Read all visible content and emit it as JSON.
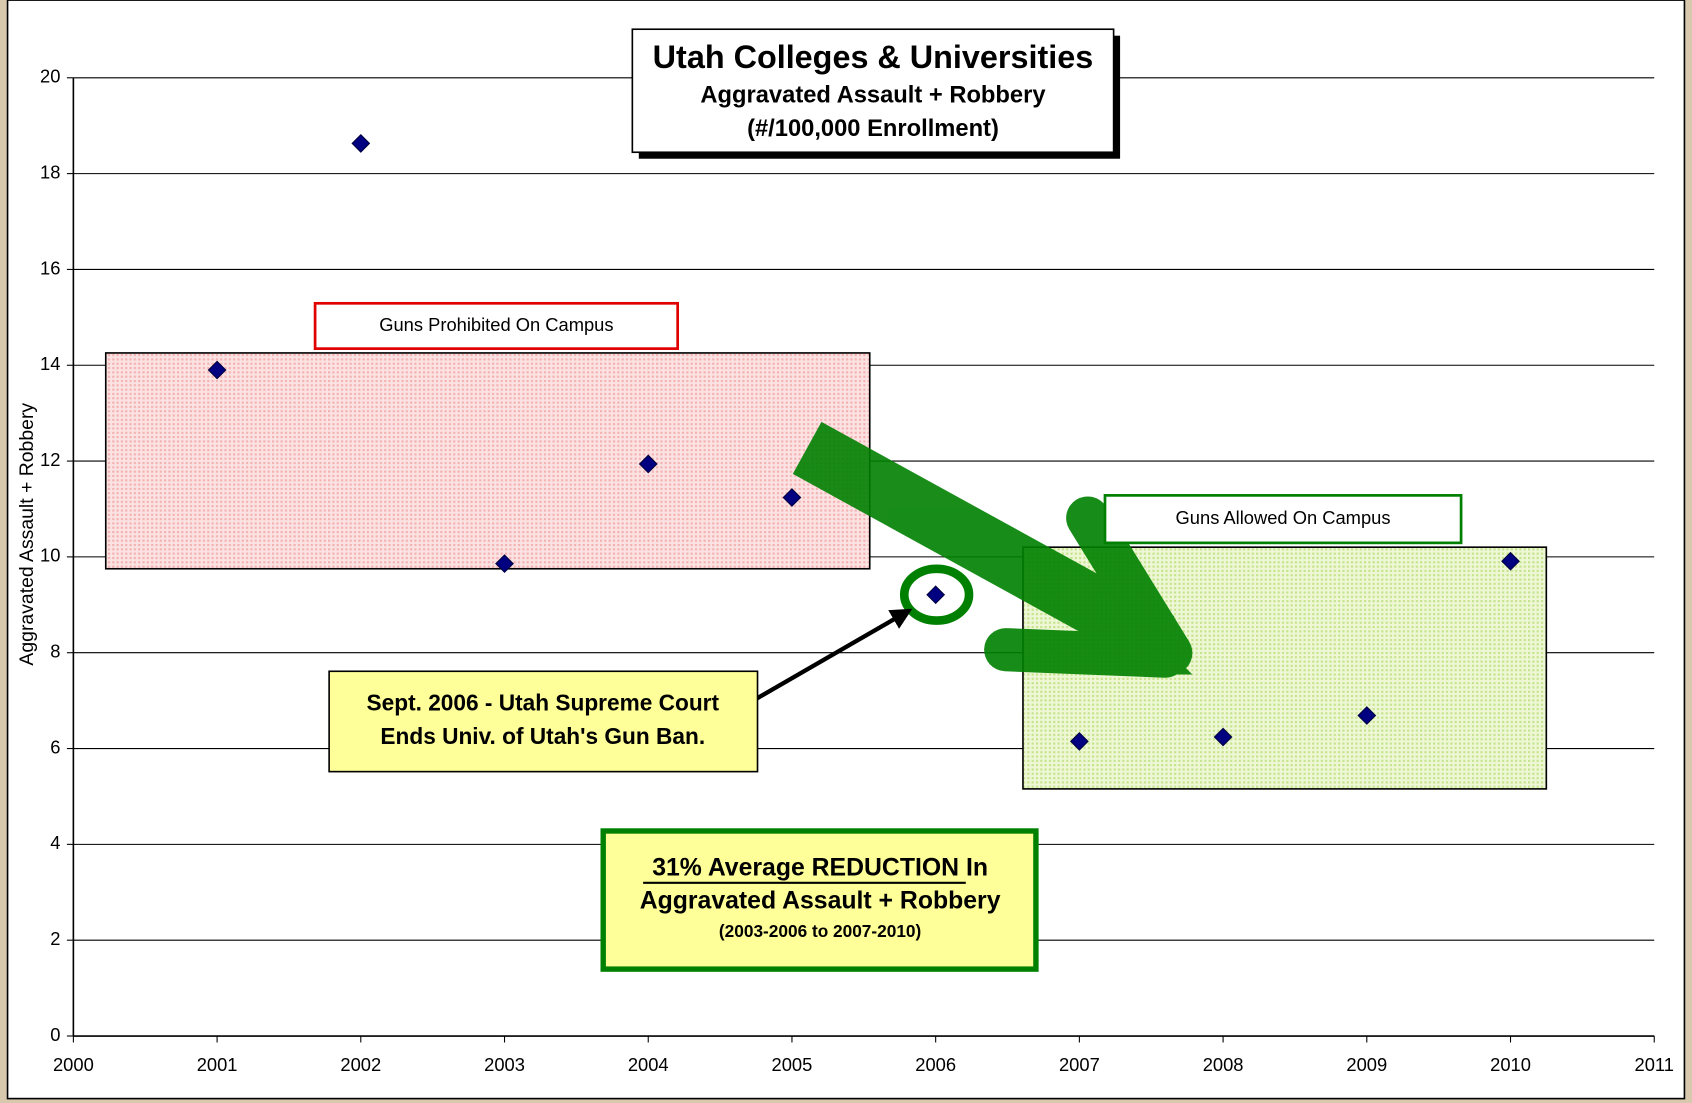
{
  "chart_data": {
    "type": "scatter",
    "title": "Utah Colleges & Universities",
    "subtitle": [
      "Aggravated Assault + Robbery",
      "(#/100,000 Enrollment)"
    ],
    "y_label": "Aggravated Assault + Robbery",
    "x": [
      2001,
      2002,
      2003,
      2004,
      2005,
      2006,
      2007,
      2008,
      2009,
      2010
    ],
    "series": [
      {
        "name": "Aggravated Assault + Robbery",
        "color": "#000080",
        "values": [
          13.9,
          18.63,
          9.86,
          11.94,
          11.24,
          9.21,
          6.15,
          6.24,
          6.69,
          9.91
        ]
      }
    ],
    "xlim": [
      2000,
      2011
    ],
    "xticks": [
      2000,
      2001,
      2002,
      2003,
      2004,
      2005,
      2006,
      2007,
      2008,
      2009,
      2010,
      2011
    ],
    "ylim": [
      0,
      20
    ],
    "yticks": [
      0,
      2,
      4,
      6,
      8,
      10,
      12,
      14,
      16,
      18,
      20
    ],
    "grid": true,
    "annotations": {
      "prohibited": "Guns Prohibited On Campus",
      "allowed": "Guns Allowed On Campus",
      "callout": [
        "Sept. 2006 - Utah Supreme Court",
        "Ends Univ. of Utah's Gun Ban."
      ],
      "reduction": [
        "31% Average REDUCTION In",
        "Aggravated Assault + Robbery",
        "(2003-2006 to 2007-2010)"
      ]
    }
  }
}
